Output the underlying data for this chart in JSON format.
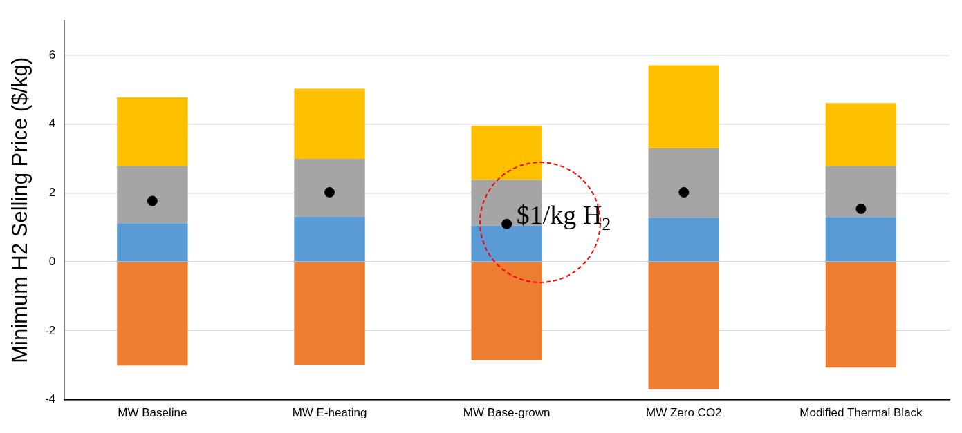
{
  "chart_data": {
    "type": "bar",
    "stacked": true,
    "ylabel": "Minimum H2 Selling Price ($/kg)",
    "categories": [
      "MW Baseline",
      "MW E-heating",
      "MW Base-grown",
      "MW Zero CO2",
      "Modified Thermal Black"
    ],
    "series": [
      {
        "color": "#ed7d31",
        "values": [
          -3.01,
          -2.99,
          -2.86,
          -3.7,
          -3.07
        ]
      },
      {
        "color": "#5b9bd5",
        "values": [
          1.12,
          1.31,
          1.05,
          1.28,
          1.3
        ]
      },
      {
        "color": "#a5a5a5",
        "values": [
          1.66,
          1.68,
          1.33,
          2.02,
          1.48
        ]
      },
      {
        "color": "#ffc000",
        "values": [
          2.0,
          2.04,
          1.58,
          2.41,
          1.83
        ]
      },
      {
        "type": "scatter",
        "color": "#000000",
        "marker": "circle",
        "x": [
          "MW Baseline",
          "MW E-heating",
          "MW Base-grown",
          "MW Zero CO2",
          "Modified Thermal Black"
        ],
        "values": [
          1.77,
          2.02,
          1.1,
          2.02,
          1.54
        ]
      }
    ],
    "ylim": [
      -4,
      7
    ],
    "yticks": [
      -4,
      -2,
      0,
      2,
      4,
      6
    ],
    "grid": "y",
    "legend": false,
    "annotations": [
      {
        "text": "$1/kg H$_{2}$",
        "x": "MW Base-grown",
        "y": 1.3
      }
    ]
  }
}
